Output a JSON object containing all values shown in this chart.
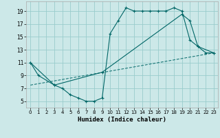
{
  "xlabel": "Humidex (Indice chaleur)",
  "bg_color": "#cce8e8",
  "grid_color": "#99cccc",
  "line_color": "#006666",
  "xlim": [
    -0.5,
    23.5
  ],
  "ylim": [
    4.0,
    20.5
  ],
  "yticks": [
    5,
    7,
    9,
    11,
    13,
    15,
    17,
    19
  ],
  "xticks": [
    0,
    1,
    2,
    3,
    4,
    5,
    6,
    7,
    8,
    9,
    10,
    11,
    12,
    13,
    14,
    15,
    16,
    17,
    18,
    19,
    20,
    21,
    22,
    23
  ],
  "line1_x": [
    0,
    1,
    3,
    4,
    5,
    6,
    7,
    8,
    9,
    10,
    11,
    12,
    13,
    14,
    15,
    16,
    17,
    18,
    19,
    20,
    21,
    22,
    23
  ],
  "line1_y": [
    11.0,
    9.0,
    7.5,
    7.0,
    6.0,
    5.5,
    5.0,
    5.0,
    5.5,
    15.5,
    17.5,
    19.5,
    19.0,
    19.0,
    19.0,
    19.0,
    19.0,
    19.5,
    19.0,
    14.5,
    13.5,
    12.5,
    12.5
  ],
  "line2_x": [
    0,
    3,
    9,
    19,
    20,
    21,
    23
  ],
  "line2_y": [
    11.0,
    7.5,
    9.5,
    18.5,
    17.5,
    13.5,
    12.5
  ],
  "line3_x": [
    0,
    23
  ],
  "line3_y": [
    7.5,
    12.5
  ]
}
